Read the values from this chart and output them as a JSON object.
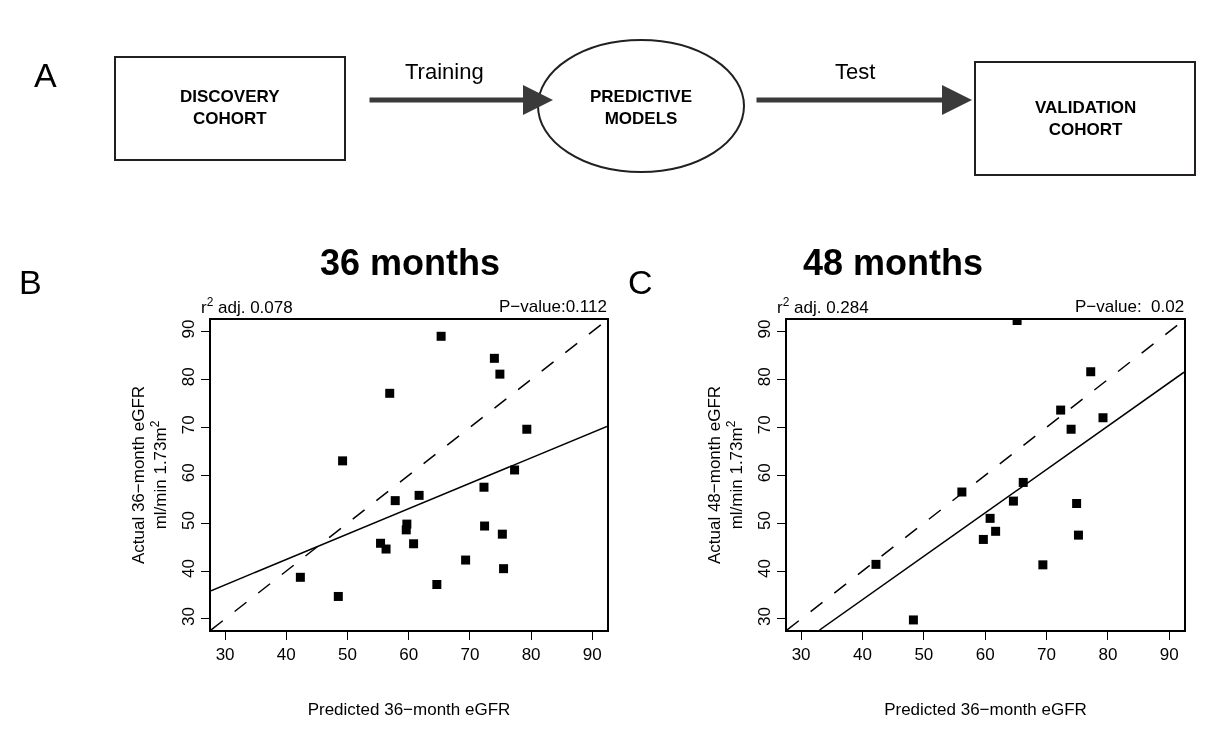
{
  "chart_data": [
    {
      "type": "other",
      "annotations": [
        "A",
        "DISCOVERY\nCOHORT",
        "Training",
        "PREDICTIVE\nMODELS",
        "Test",
        "VALIDATION\nCOHORT"
      ]
    },
    {
      "type": "scatter",
      "title": "36 months",
      "xlabel": "Predicted 36−month eGFR",
      "ylabel": "Actual 36−month eGFR\nml/min 1.73m$^{2}$",
      "annotations": [
        "B",
        "r$^{2}$ adj. 0.078",
        "P−value:0.112"
      ],
      "xlim": [
        27.7,
        92.4
      ],
      "ylim": [
        27.7,
        92.4
      ],
      "xticks": [
        30,
        40,
        50,
        60,
        70,
        80,
        90
      ],
      "yticks": [
        30,
        40,
        50,
        60,
        70,
        80,
        90
      ],
      "series": [
        {
          "type": "scatter",
          "color": "#000000",
          "marker": "square",
          "x": [
            65.3,
            74.0,
            74.9,
            56.9,
            79.3,
            49.2,
            77.3,
            72.3,
            61.7,
            57.8,
            59.7,
            59.6,
            72.4,
            75.3,
            55.4,
            56.3,
            60.8,
            69.3,
            75.5,
            42.3,
            64.6,
            48.5
          ],
          "values": [
            89.0,
            84.4,
            81.1,
            77.1,
            69.6,
            63.0,
            61.1,
            57.5,
            55.8,
            54.7,
            49.8,
            48.6,
            49.4,
            47.7,
            45.8,
            44.6,
            45.7,
            42.3,
            40.5,
            38.7,
            37.2,
            34.7
          ]
        },
        {
          "type": "line",
          "color": "#000000",
          "marker": "none",
          "line_style": "solid",
          "x": [
            27.7,
            92.4
          ],
          "values": [
            35.9,
            70.2
          ]
        },
        {
          "type": "line",
          "color": "#000000",
          "marker": "none",
          "line_style": "dashed",
          "x": [
            27.7,
            92.4
          ],
          "values": [
            27.7,
            92.4
          ]
        }
      ]
    },
    {
      "type": "scatter",
      "title": "48 months",
      "xlabel": "Predicted 36−month eGFR",
      "ylabel": "Actual 48−month eGFR\nml/min 1.73m$^{2}$",
      "annotations": [
        "C",
        "r$^{2}$ adj. 0.284",
        "P−value:  0.02"
      ],
      "xlim": [
        27.7,
        92.4
      ],
      "ylim": [
        27.7,
        92.4
      ],
      "xticks": [
        30,
        40,
        50,
        60,
        70,
        80,
        90
      ],
      "yticks": [
        30,
        40,
        50,
        60,
        70,
        80,
        90
      ],
      "series": [
        {
          "type": "scatter",
          "color": "#000000",
          "marker": "square",
          "x": [
            65.2,
            77.2,
            72.3,
            79.2,
            74.0,
            66.2,
            56.2,
            64.6,
            74.9,
            60.8,
            61.7,
            59.7,
            75.2,
            42.2,
            69.4,
            48.3
          ],
          "values": [
            92.3,
            81.6,
            73.6,
            72.0,
            69.6,
            58.5,
            56.5,
            54.6,
            54.1,
            51.0,
            48.3,
            46.6,
            47.5,
            41.4,
            41.3,
            29.8
          ]
        },
        {
          "type": "line",
          "color": "#000000",
          "marker": "none",
          "line_style": "solid",
          "x": [
            33.0,
            92.4
          ],
          "values": [
            27.7,
            81.5
          ]
        },
        {
          "type": "line",
          "color": "#000000",
          "marker": "none",
          "line_style": "dashed",
          "x": [
            27.7,
            92.4
          ],
          "values": [
            27.7,
            92.4
          ]
        }
      ]
    }
  ]
}
